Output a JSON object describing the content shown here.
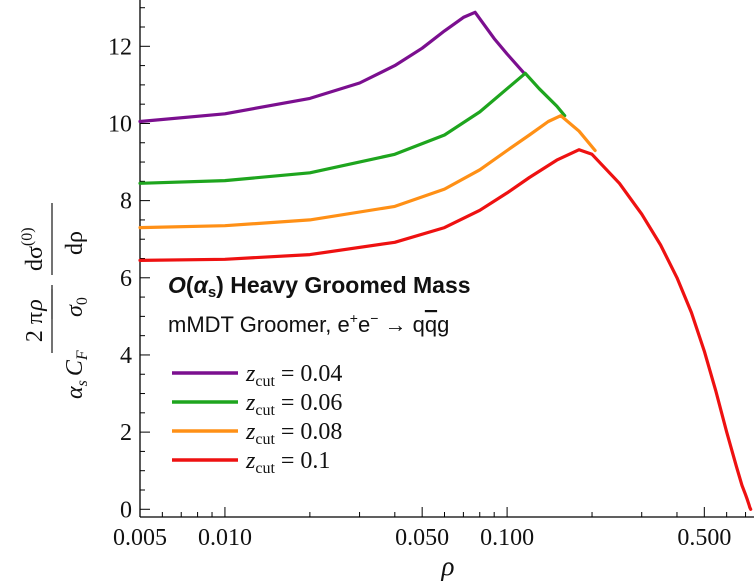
{
  "chart_data": {
    "type": "line",
    "title": "O(αs) Heavy Groomed Mass",
    "title_parts": {
      "O": "O",
      "open": "(",
      "alpha": "α",
      "sub": "s",
      "close": ")",
      "rest": " Heavy Groomed Mass"
    },
    "subtitle": "mMDT Groomer, e+e− → qq̄g",
    "subtitle_parts": {
      "a": "mMDT Groomer, e",
      "sup1": "+",
      "b": "e",
      "sup2": "−",
      "c": " → q",
      "qbar": "q",
      "d": "g"
    },
    "xlabel": "ρ",
    "ylabel": "2π/(αs CF) · ρ/σ0 · dσ(0)/dρ",
    "ylabel_parts": {
      "two_pi": "2 π",
      "alpha": "α",
      "alpha_sub": "s",
      "CF": "C",
      "CF_sub": "F",
      "rho": "ρ",
      "sigma0": "σ",
      "sigma0_sub": "0",
      "dsigma": "dσ",
      "dsigma_sup": "(0)",
      "drho": "dρ"
    },
    "x_scale": "log",
    "xlim": [
      0.005,
      0.75
    ],
    "ylim": [
      -0.2,
      13.2
    ],
    "x_ticks": [
      {
        "value": 0.005,
        "label": "0.005"
      },
      {
        "value": 0.01,
        "label": "0.010"
      },
      {
        "value": 0.05,
        "label": "0.050"
      },
      {
        "value": 0.1,
        "label": "0.100"
      },
      {
        "value": 0.5,
        "label": "0.500"
      }
    ],
    "y_ticks": [
      {
        "value": 0,
        "label": "0"
      },
      {
        "value": 2,
        "label": "2"
      },
      {
        "value": 4,
        "label": "4"
      },
      {
        "value": 6,
        "label": "6"
      },
      {
        "value": 8,
        "label": "8"
      },
      {
        "value": 10,
        "label": "10"
      },
      {
        "value": 12,
        "label": "12"
      }
    ],
    "grid": false,
    "legend_position": "bottom-left",
    "series": [
      {
        "name": "z_cut = 0.04",
        "legend_parts": {
          "z": "z",
          "sub": "cut",
          "rest": " = 0.04"
        },
        "color": "#7b0f8f",
        "x": [
          0.005,
          0.01,
          0.02,
          0.03,
          0.04,
          0.05,
          0.06,
          0.07,
          0.077,
          0.09,
          0.1,
          0.115
        ],
        "y": [
          10.05,
          10.25,
          10.65,
          11.05,
          11.5,
          11.95,
          12.4,
          12.75,
          12.88,
          12.2,
          11.8,
          11.3
        ]
      },
      {
        "name": "z_cut = 0.06",
        "legend_parts": {
          "z": "z",
          "sub": "cut",
          "rest": " = 0.06"
        },
        "color": "#1ea51e",
        "x": [
          0.005,
          0.01,
          0.02,
          0.04,
          0.06,
          0.08,
          0.1,
          0.116,
          0.13,
          0.15,
          0.16
        ],
        "y": [
          8.45,
          8.52,
          8.72,
          9.2,
          9.7,
          10.3,
          10.9,
          11.3,
          10.9,
          10.45,
          10.2
        ]
      },
      {
        "name": "z_cut = 0.08",
        "legend_parts": {
          "z": "z",
          "sub": "cut",
          "rest": " = 0.08"
        },
        "color": "#ff9016",
        "x": [
          0.005,
          0.01,
          0.02,
          0.04,
          0.06,
          0.08,
          0.1,
          0.12,
          0.14,
          0.155,
          0.18,
          0.205
        ],
        "y": [
          7.3,
          7.35,
          7.5,
          7.85,
          8.3,
          8.8,
          9.3,
          9.7,
          10.05,
          10.2,
          9.8,
          9.3
        ]
      },
      {
        "name": "z_cut = 0.1",
        "legend_parts": {
          "z": "z",
          "sub": "cut",
          "rest": " = 0.1"
        },
        "color": "#ee1111",
        "x": [
          0.005,
          0.01,
          0.02,
          0.04,
          0.06,
          0.08,
          0.1,
          0.12,
          0.15,
          0.18,
          0.2,
          0.25,
          0.3,
          0.35,
          0.4,
          0.45,
          0.5,
          0.55,
          0.6,
          0.65,
          0.68,
          0.7,
          0.71,
          0.72,
          0.725,
          0.73
        ],
        "y": [
          6.45,
          6.48,
          6.6,
          6.92,
          7.3,
          7.75,
          8.2,
          8.6,
          9.05,
          9.32,
          9.2,
          8.45,
          7.65,
          6.85,
          6.0,
          5.1,
          4.1,
          3.05,
          2.0,
          1.1,
          0.62,
          0.38,
          0.25,
          0.12,
          0.05,
          0.0
        ]
      }
    ]
  }
}
